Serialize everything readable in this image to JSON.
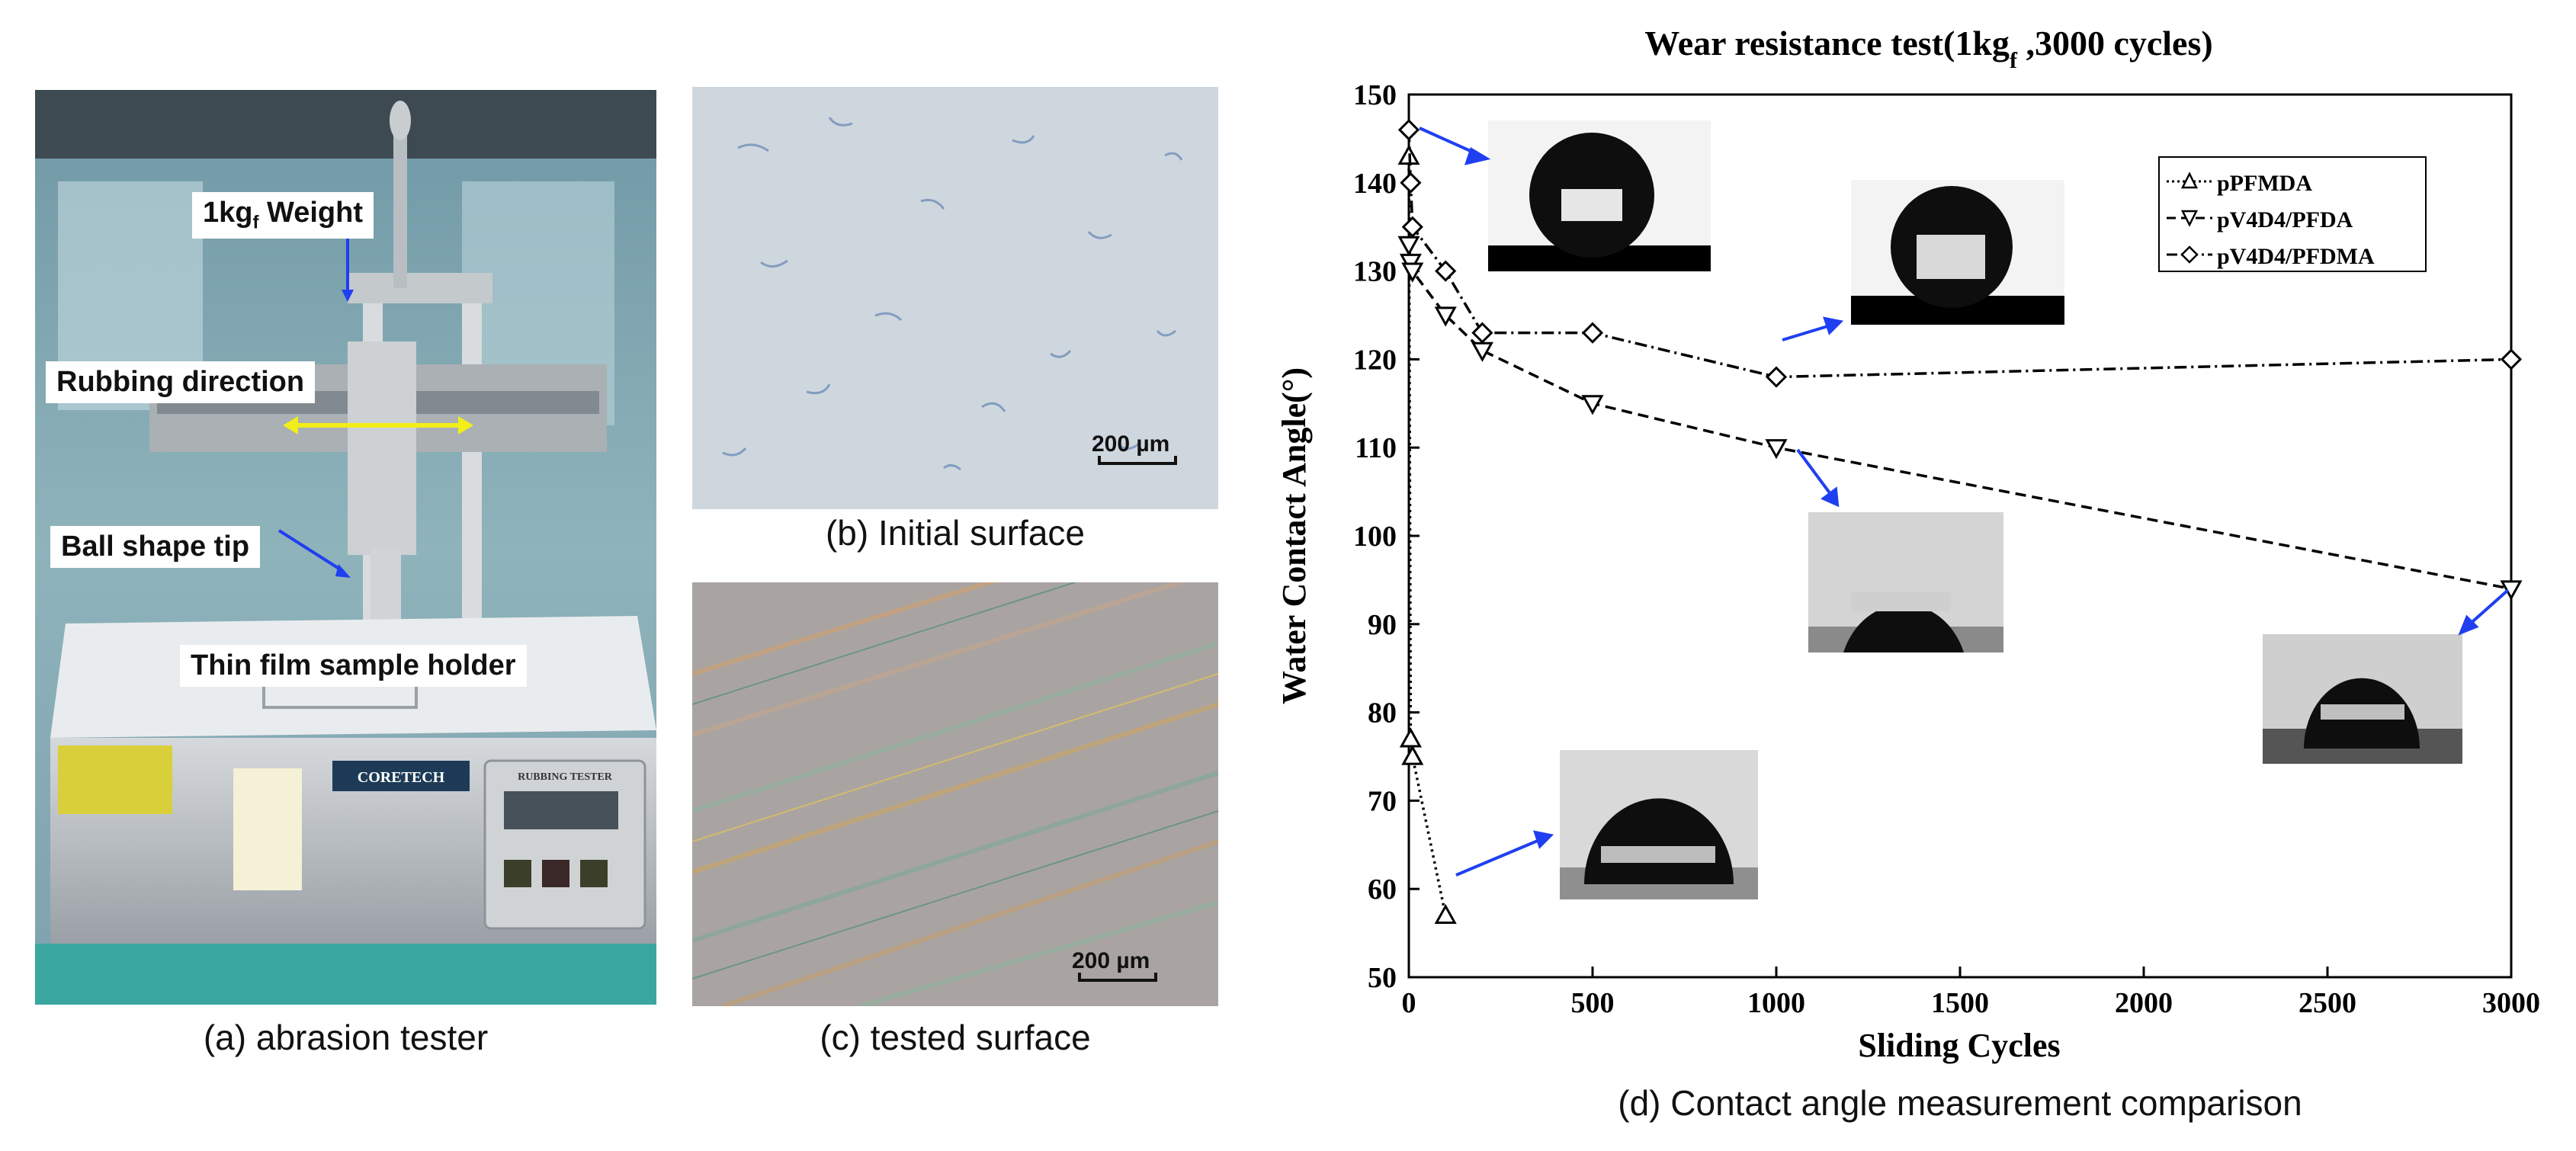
{
  "panel_a": {
    "caption": "(a) abrasion tester",
    "labels": {
      "weight_main": "1kg",
      "weight_sub": "f",
      "weight_rest": " Weight",
      "rubbing": "Rubbing direction",
      "tip": "Ball shape tip",
      "holder": "Thin film sample holder"
    },
    "device_brand": "CORETECH",
    "device_model": "RUBBING TESTER"
  },
  "panel_b": {
    "caption": "(b) Initial surface",
    "scale_bar": "200 µm"
  },
  "panel_c": {
    "caption": "(c) tested surface",
    "scale_bar": "200 µm"
  },
  "panel_d": {
    "caption": "(d) Contact angle measurement comparison"
  },
  "colors": {
    "arrow_blue": "#1f3ff0",
    "rubbing_arrow": "#f2ee1a",
    "initial_surface": "#cfd7de",
    "tested_surface": "#a9a4a1"
  },
  "chart_data": {
    "type": "line",
    "title_main": "Wear resistance test(1kg",
    "title_sub": "f",
    "title_rest": " ,3000 cycles)",
    "xlabel": "Sliding Cycles",
    "ylabel": "Water Contact Angle(°)",
    "xlim": [
      0,
      3000
    ],
    "ylim": [
      50,
      150
    ],
    "xticks": [
      0,
      500,
      1000,
      1500,
      2000,
      2500,
      3000
    ],
    "yticks": [
      50,
      60,
      70,
      80,
      90,
      100,
      110,
      120,
      130,
      140,
      150
    ],
    "grid": false,
    "legend_position": "top-right",
    "series": [
      {
        "name": "pPFMDA",
        "marker": "triangle-up",
        "dash": "dotted",
        "x": [
          0,
          5,
          10,
          100
        ],
        "y": [
          143,
          77,
          75,
          57
        ]
      },
      {
        "name": "pV4D4/PFDA",
        "marker": "triangle-down",
        "dash": "dashed",
        "x": [
          0,
          5,
          10,
          100,
          200,
          500,
          1000,
          3000
        ],
        "y": [
          133,
          131,
          130,
          125,
          121,
          115,
          110,
          94
        ]
      },
      {
        "name": "pV4D4/PFDMA",
        "marker": "diamond",
        "dash": "dash-dot",
        "x": [
          0,
          5,
          10,
          100,
          200,
          500,
          1000,
          3000
        ],
        "y": [
          146,
          140,
          135,
          130,
          123,
          123,
          118,
          120
        ]
      }
    ]
  }
}
